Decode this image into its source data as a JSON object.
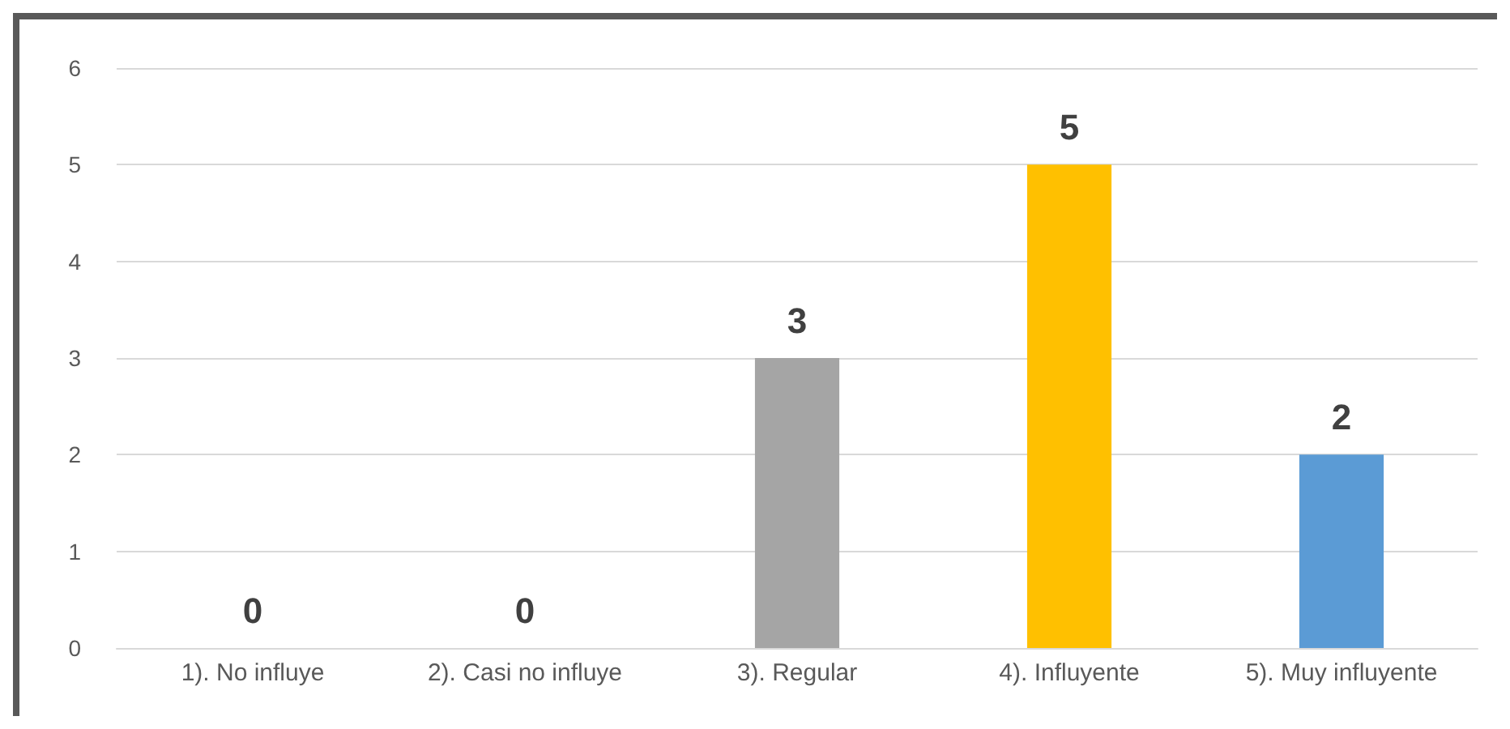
{
  "chart_data": {
    "type": "bar",
    "categories": [
      "1). No influye",
      "2). Casi no influye",
      "3). Regular",
      "4). Influyente",
      "5). Muy influyente"
    ],
    "values": [
      0,
      0,
      3,
      5,
      2
    ],
    "colors": [
      "#4472c4",
      "#ed7d31",
      "#a5a5a5",
      "#ffc000",
      "#5b9bd5"
    ],
    "ylim": [
      0,
      6
    ],
    "yticks": [
      0,
      1,
      2,
      3,
      4,
      5,
      6
    ],
    "grid": "y",
    "data_labels": true
  }
}
